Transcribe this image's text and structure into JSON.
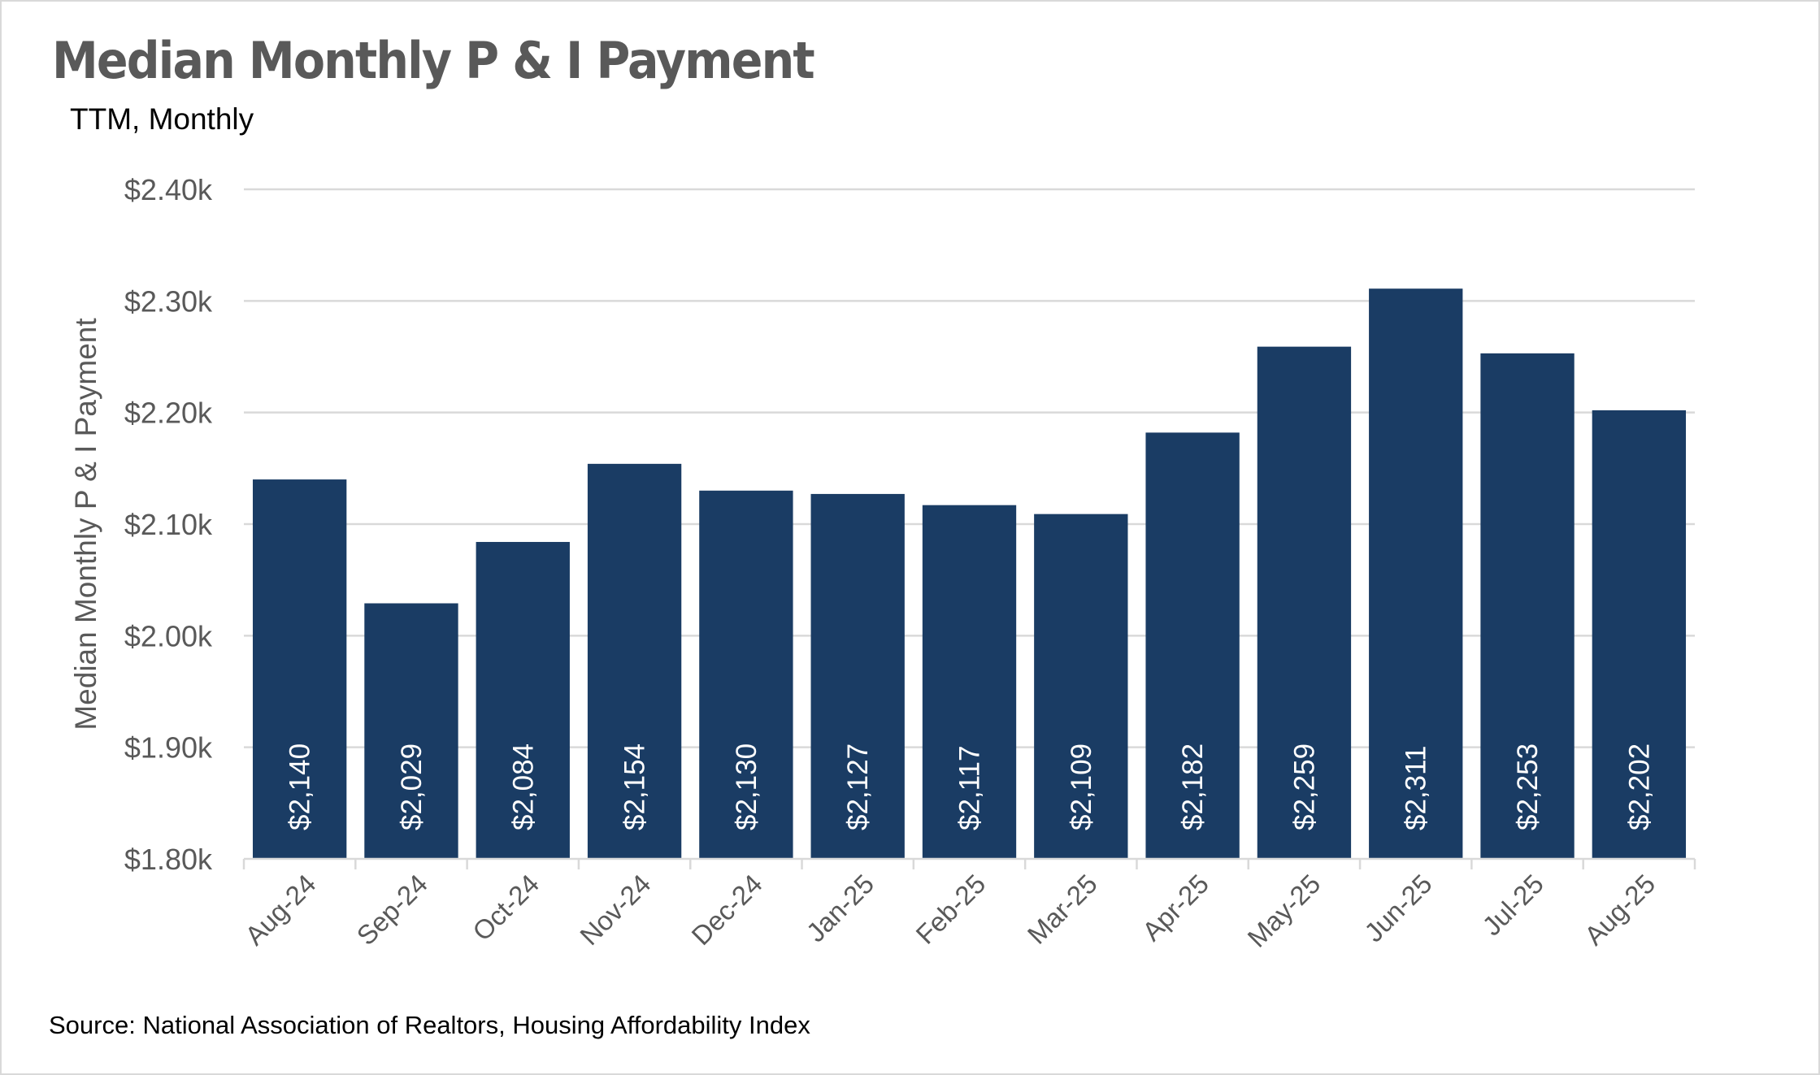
{
  "chart_data": {
    "type": "bar",
    "title": "Median Monthly P & I Payment",
    "subtitle": "TTM, Monthly",
    "xlabel": "",
    "ylabel": "Median Monthly P & I Payment",
    "categories": [
      "Aug-24",
      "Sep-24",
      "Oct-24",
      "Nov-24",
      "Dec-24",
      "Jan-25",
      "Feb-25",
      "Mar-25",
      "Apr-25",
      "May-25",
      "Jun-25",
      "Jul-25",
      "Aug-25"
    ],
    "values": [
      2140,
      2029,
      2084,
      2154,
      2130,
      2127,
      2117,
      2109,
      2182,
      2259,
      2311,
      2253,
      2202
    ],
    "data_labels": [
      "$2,140",
      "$2,029",
      "$2,084",
      "$2,154",
      "$2,130",
      "$2,127",
      "$2,117",
      "$2,109",
      "$2,182",
      "$2,259",
      "$2,311",
      "$2,253",
      "$2,202"
    ],
    "ylim": [
      1800,
      2400
    ],
    "yticks": [
      1800,
      1900,
      2000,
      2100,
      2200,
      2300,
      2400
    ],
    "ytick_labels": [
      "$1.80k",
      "$1.90k",
      "$2.00k",
      "$2.10k",
      "$2.20k",
      "$2.30k",
      "$2.40k"
    ],
    "grid": true,
    "legend": "none",
    "bar_color": "#1a3c64",
    "source": "Source: National Association of Realtors, Housing Affordability Index"
  }
}
